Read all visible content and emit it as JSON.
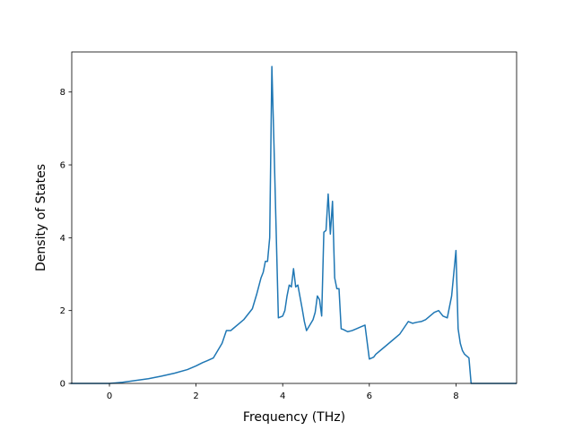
{
  "chart_data": {
    "type": "line",
    "title": "",
    "xlabel": "Frequency (THz)",
    "ylabel": "Density of States",
    "xlim": [
      -0.87,
      9.4
    ],
    "ylim": [
      0,
      9.1
    ],
    "xticks": [
      0,
      2,
      4,
      6,
      8
    ],
    "yticks": [
      0,
      2,
      4,
      6,
      8
    ],
    "grid": false,
    "series": [
      {
        "name": "",
        "color": "#1f77b4",
        "x": [
          -0.9,
          -0.5,
          0.0,
          0.3,
          0.6,
          0.9,
          1.2,
          1.5,
          1.8,
          2.0,
          2.15,
          2.25,
          2.4,
          2.5,
          2.6,
          2.7,
          2.8,
          2.85,
          3.0,
          3.1,
          3.2,
          3.3,
          3.4,
          3.5,
          3.55,
          3.6,
          3.65,
          3.7,
          3.75,
          3.8,
          3.9,
          4.0,
          4.05,
          4.1,
          4.15,
          4.2,
          4.25,
          4.3,
          4.35,
          4.45,
          4.5,
          4.55,
          4.6,
          4.7,
          4.75,
          4.8,
          4.85,
          4.9,
          4.95,
          5.0,
          5.05,
          5.1,
          5.15,
          5.2,
          5.25,
          5.3,
          5.35,
          5.4,
          5.45,
          5.5,
          5.6,
          5.7,
          5.8,
          5.9,
          6.0,
          6.1,
          6.15,
          6.3,
          6.5,
          6.7,
          6.9,
          7.0,
          7.1,
          7.2,
          7.3,
          7.5,
          7.6,
          7.7,
          7.8,
          7.9,
          8.0,
          8.05,
          8.1,
          8.15,
          8.2,
          8.3,
          8.35,
          8.5,
          8.6,
          8.7,
          9.0,
          9.4
        ],
        "values": [
          0.0,
          0.0,
          0.0,
          0.03,
          0.08,
          0.13,
          0.2,
          0.28,
          0.38,
          0.48,
          0.57,
          0.62,
          0.7,
          0.9,
          1.1,
          1.45,
          1.45,
          1.5,
          1.65,
          1.75,
          1.9,
          2.05,
          2.45,
          2.9,
          3.05,
          3.35,
          3.35,
          4.0,
          8.7,
          6.5,
          1.8,
          1.85,
          2.0,
          2.4,
          2.7,
          2.65,
          3.15,
          2.65,
          2.7,
          2.05,
          1.7,
          1.45,
          1.55,
          1.75,
          1.95,
          2.4,
          2.3,
          1.85,
          4.15,
          4.2,
          5.2,
          4.1,
          5.0,
          2.9,
          2.6,
          2.6,
          1.5,
          1.48,
          1.45,
          1.42,
          1.45,
          1.5,
          1.55,
          1.6,
          0.67,
          0.72,
          0.8,
          0.95,
          1.15,
          1.35,
          1.7,
          1.65,
          1.68,
          1.7,
          1.75,
          1.95,
          2.0,
          1.85,
          1.8,
          2.4,
          3.65,
          1.5,
          1.1,
          0.9,
          0.8,
          0.7,
          0.0,
          0.0,
          0.0,
          0.0,
          0.0,
          0.0
        ]
      }
    ]
  }
}
